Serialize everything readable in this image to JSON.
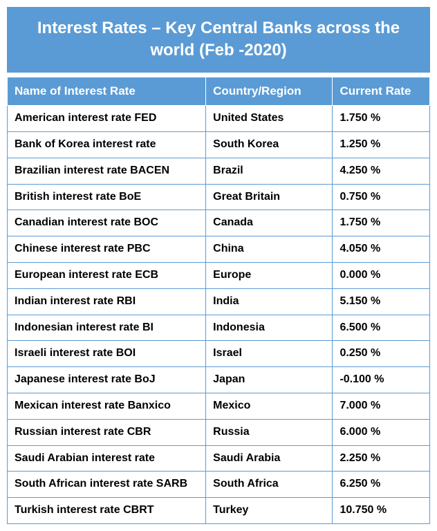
{
  "title": "Interest Rates – Key Central Banks across the world (Feb -2020)",
  "colors": {
    "header_bg": "#5a9bd5",
    "header_text": "#ffffff",
    "cell_border": "#5a9bd5",
    "cell_text": "#000000",
    "cell_bg": "#ffffff"
  },
  "typography": {
    "title_fontsize_pt": 18,
    "header_fontsize_pt": 13,
    "cell_fontsize_pt": 12,
    "font_family": "Arial",
    "font_weight": "bold"
  },
  "table": {
    "type": "table",
    "columns": [
      {
        "label": "Name of Interest Rate",
        "width_pct": 47,
        "align": "left"
      },
      {
        "label": "Country/Region",
        "width_pct": 30,
        "align": "left"
      },
      {
        "label": "Current Rate",
        "width_pct": 23,
        "align": "left"
      }
    ],
    "rows": [
      {
        "name": "American interest rate FED",
        "country": "United States",
        "rate": "1.750 %"
      },
      {
        "name": "Bank of Korea interest rate",
        "country": "South Korea",
        "rate": "1.250 %"
      },
      {
        "name": "Brazilian interest rate BACEN",
        "country": "Brazil",
        "rate": "4.250 %"
      },
      {
        "name": "British interest rate BoE",
        "country": "Great Britain",
        "rate": "0.750 %"
      },
      {
        "name": "Canadian interest rate BOC",
        "country": "Canada",
        "rate": "1.750 %"
      },
      {
        "name": "Chinese interest rate PBC",
        "country": "China",
        "rate": "4.050 %"
      },
      {
        "name": "European interest rate ECB",
        "country": "Europe",
        "rate": "0.000 %"
      },
      {
        "name": "Indian interest rate RBI",
        "country": "India",
        "rate": "5.150 %"
      },
      {
        "name": "Indonesian interest rate BI",
        "country": "Indonesia",
        "rate": "6.500 %"
      },
      {
        "name": "Israeli interest rate BOI",
        "country": "Israel",
        "rate": "0.250 %"
      },
      {
        "name": "Japanese interest rate BoJ",
        "country": "Japan",
        "rate": "-0.100 %"
      },
      {
        "name": "Mexican interest rate Banxico",
        "country": "Mexico",
        "rate": "7.000 %"
      },
      {
        "name": "Russian interest rate CBR",
        "country": "Russia",
        "rate": "6.000 %"
      },
      {
        "name": "Saudi Arabian interest rate",
        "country": "Saudi Arabia",
        "rate": "2.250 %"
      },
      {
        "name": "South African interest rate SARB",
        "country": "South Africa",
        "rate": "6.250 %"
      },
      {
        "name": "Turkish interest rate CBRT",
        "country": "Turkey",
        "rate": "10.750 %"
      }
    ]
  }
}
